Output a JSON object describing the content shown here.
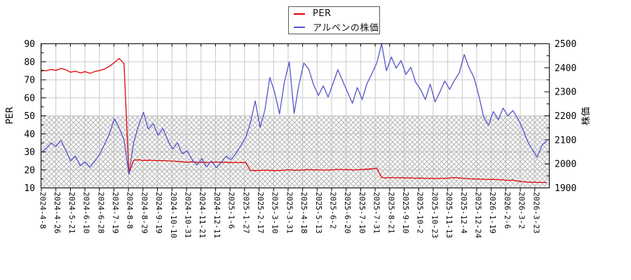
{
  "chart_data": {
    "type": "line",
    "title": "",
    "grid": true,
    "legend_position": "top-center",
    "x_tick_labels": [
      "2024-4-8",
      "2024-4-26",
      "2024-5-21",
      "2024-6-10",
      "2024-6-28",
      "2024-7-19",
      "2024-8-8",
      "2024-8-29",
      "2024-9-19",
      "2024-10-10",
      "2024-10-31",
      "2024-11-21",
      "2024-12-11",
      "2025-1-6",
      "2025-1-27",
      "2025-2-17",
      "2025-3-10",
      "2025-3-31",
      "2025-4-18",
      "2025-5-13",
      "2025-6-2",
      "2025-6-20",
      "2025-7-10",
      "2025-7-31",
      "2025-8-21",
      "2025-9-10",
      "2025-10-2",
      "2025-10-23",
      "2025-11-13",
      "2025-12-4",
      "2025-12-24",
      "2026-1-19",
      "2026-2-6",
      "2026-3-2",
      "2026-3-23"
    ],
    "y_left": {
      "label": "PER",
      "min": 10,
      "max": 90,
      "tick_step": 10,
      "minor_step": 5
    },
    "y_right": {
      "label": "株価",
      "min": 1900,
      "max": 2500,
      "tick_step": 100,
      "minor_step": 50
    },
    "shaded_band": {
      "axis": "left",
      "from": 10,
      "to": 50,
      "style": "crosshatch"
    },
    "series": [
      {
        "name": "PER",
        "axis": "left",
        "color": "#dd0000",
        "values": [
          75.4,
          75.0,
          75.8,
          75.2,
          76.3,
          75.6,
          74.2,
          74.8,
          73.8,
          74.5,
          73.6,
          74.6,
          75.2,
          76.0,
          77.5,
          79.5,
          81.8,
          79.0,
          17.8,
          25.4,
          25.6,
          25.2,
          25.4,
          25.3,
          25.1,
          25.2,
          25.0,
          24.9,
          24.7,
          24.5,
          24.3,
          24.5,
          24.2,
          24.3,
          24.1,
          24.2,
          24.4,
          24.2,
          24.3,
          24.1,
          24.2,
          24.0,
          24.3,
          19.8,
          19.6,
          19.7,
          19.9,
          19.8,
          19.6,
          19.7,
          19.9,
          20.1,
          19.8,
          19.9,
          20.0,
          20.2,
          20.0,
          20.1,
          19.9,
          20.0,
          20.1,
          20.3,
          20.1,
          20.2,
          20.0,
          20.1,
          20.2,
          20.4,
          20.6,
          21.0,
          15.8,
          15.6,
          15.8,
          15.6,
          15.7,
          15.5,
          15.6,
          15.4,
          15.5,
          15.3,
          15.4,
          15.2,
          15.4,
          15.3,
          15.5,
          15.8,
          15.5,
          15.3,
          15.1,
          15.0,
          14.9,
          14.8,
          14.7,
          14.8,
          14.6,
          14.5,
          14.1,
          14.4,
          13.8,
          13.5,
          13.3,
          13.2,
          13.1,
          13.1,
          13.0
        ]
      },
      {
        "name": "アルペンの株価",
        "axis": "right",
        "color": "#5454cc",
        "values": [
          2048,
          2065,
          2088,
          2072,
          2098,
          2058,
          2012,
          2032,
          1992,
          2008,
          1986,
          2012,
          2040,
          2082,
          2125,
          2188,
          2150,
          2100,
          1958,
          2090,
          2160,
          2215,
          2145,
          2168,
          2120,
          2148,
          2098,
          2062,
          2088,
          2042,
          2055,
          2018,
          1996,
          2022,
          1988,
          2012,
          1984,
          2005,
          2032,
          2018,
          2042,
          2075,
          2108,
          2170,
          2262,
          2152,
          2225,
          2360,
          2298,
          2208,
          2340,
          2425,
          2210,
          2330,
          2420,
          2395,
          2330,
          2285,
          2325,
          2278,
          2335,
          2392,
          2345,
          2298,
          2252,
          2318,
          2268,
          2335,
          2375,
          2420,
          2500,
          2388,
          2445,
          2398,
          2430,
          2372,
          2402,
          2340,
          2310,
          2268,
          2332,
          2258,
          2300,
          2345,
          2310,
          2348,
          2380,
          2455,
          2400,
          2360,
          2285,
          2195,
          2160,
          2218,
          2185,
          2232,
          2200,
          2222,
          2190,
          2148,
          2095,
          2060,
          2028,
          2078,
          2095
        ]
      }
    ],
    "colors": {
      "grid": "#c9c9c9",
      "hatch": "#b5b5b5",
      "axis": "#000000",
      "background": "#ffffff"
    }
  }
}
